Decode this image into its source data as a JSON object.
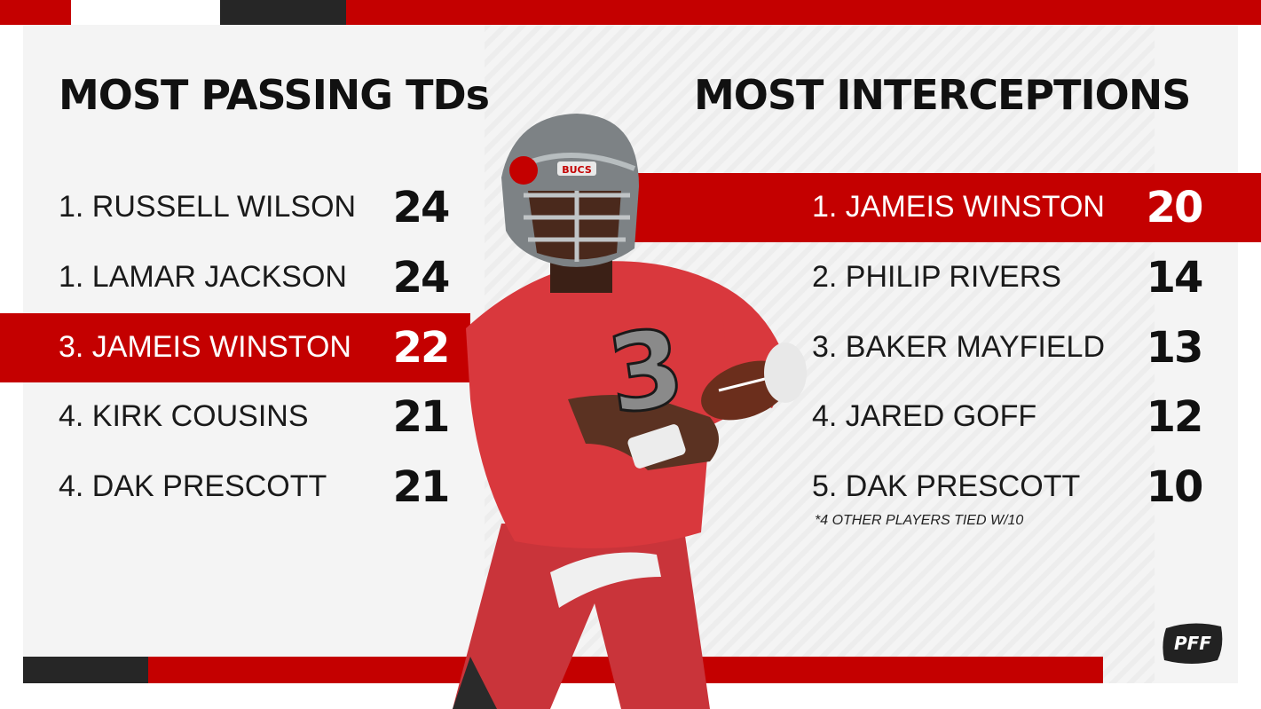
{
  "colors": {
    "brand_red": "#c40000",
    "dark": "#262626",
    "panel": "#f4f4f4",
    "jersey": "#d9383d"
  },
  "left": {
    "title": "MOST PASSING TDs",
    "rows": [
      {
        "name": "1. RUSSELL WILSON",
        "value": "24"
      },
      {
        "name": "1. LAMAR JACKSON",
        "value": "24"
      },
      {
        "name": "3. JAMEIS WINSTON",
        "value": "22",
        "highlight": true
      },
      {
        "name": "4. KIRK COUSINS",
        "value": "21"
      },
      {
        "name": "4. DAK PRESCOTT",
        "value": "21"
      }
    ]
  },
  "right": {
    "title": "MOST INTERCEPTIONS",
    "rows": [
      {
        "name": "1. JAMEIS WINSTON",
        "value": "20",
        "highlight": true
      },
      {
        "name": "2. PHILIP RIVERS",
        "value": "14"
      },
      {
        "name": "3. BAKER MAYFIELD",
        "value": "13"
      },
      {
        "name": "4. JARED GOFF",
        "value": "12"
      },
      {
        "name": "5. DAK PRESCOTT",
        "value": "10"
      }
    ],
    "footnote": "*4 OTHER PLAYERS TIED W/10"
  },
  "player_image": {
    "jersey_number": "3",
    "helmet_text": "BUCS"
  },
  "logo": {
    "text": "PFF",
    "icon": "pff-logo"
  }
}
